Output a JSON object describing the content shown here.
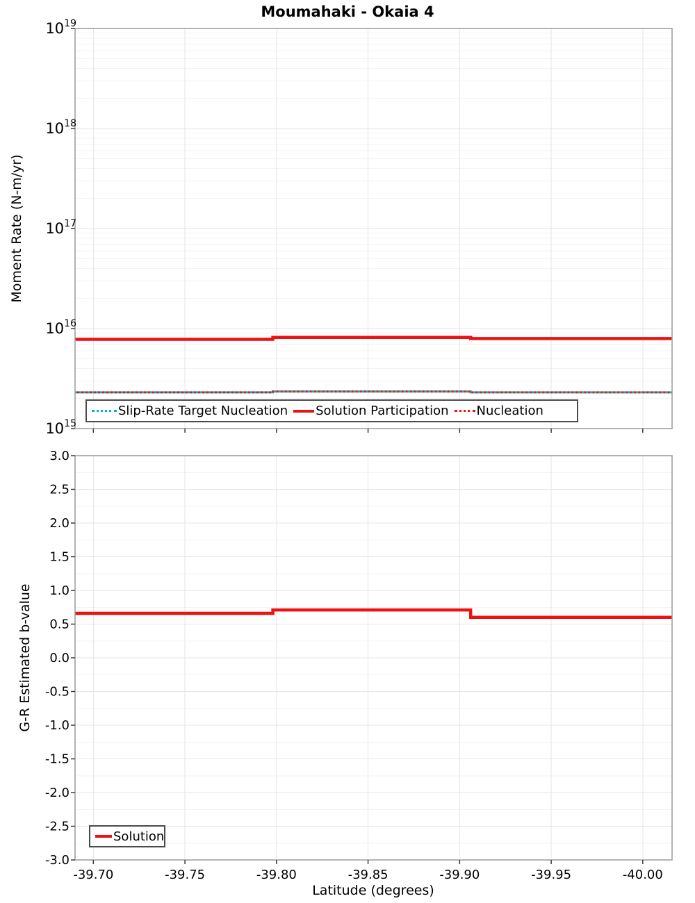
{
  "title": "Moumahaki - Okaia 4",
  "colors": {
    "red": "#ee1111",
    "teal": "#00b5bd",
    "grid_minor": "#f3f3f3",
    "grid_major": "#e6e6e6",
    "spine": "#9a9a9a",
    "tick": "#3a3a3a",
    "text": "#000000"
  },
  "chart_data": [
    {
      "type": "line",
      "panel": "moment-rate",
      "title": "Moumahaki - Okaia 4",
      "ylabel": "Moment Rate (N-m/yr)",
      "yscale": "log",
      "ylim": [
        1000000000000000.0,
        1e+19
      ],
      "xlim": [
        -39.69,
        -40.016
      ],
      "grid": true,
      "x_ticks": {
        "values": [
          -39.7,
          -39.75,
          -39.8,
          -39.85,
          -39.9,
          -39.95,
          -40.0
        ]
      },
      "y_ticks": {
        "base": "10",
        "exponents": [
          19,
          18,
          17,
          16,
          15
        ]
      },
      "legend": {
        "position": "bottom-left",
        "items": [
          {
            "label": "Slip-Rate Target Nucleation",
            "style": "dotted",
            "color": "#00b5bd"
          },
          {
            "label": "Solution Participation",
            "style": "solid",
            "color": "#ee1111"
          },
          {
            "label": "Nucleation",
            "style": "dotted",
            "color": "#ee1111"
          }
        ]
      },
      "series": [
        {
          "name": "Slip-Rate Target Nucleation",
          "style": "dotted",
          "color": "#00b5bd",
          "x": [
            -39.69,
            -39.798,
            -39.798,
            -39.906,
            -39.906,
            -40.016
          ],
          "y": [
            2300000000000000.0,
            2300000000000000.0,
            2350000000000000.0,
            2350000000000000.0,
            2300000000000000.0,
            2300000000000000.0
          ]
        },
        {
          "name": "Solution Participation",
          "style": "solid",
          "color": "#ee1111",
          "x": [
            -39.69,
            -39.798,
            -39.798,
            -39.906,
            -39.906,
            -40.016
          ],
          "y": [
            7800000000000000.0,
            7800000000000000.0,
            8150000000000000.0,
            8150000000000000.0,
            7950000000000000.0,
            7950000000000000.0
          ]
        },
        {
          "name": "Nucleation",
          "style": "dotted",
          "color": "#ee1111",
          "x": [
            -39.69,
            -39.798,
            -39.798,
            -39.906,
            -39.906,
            -40.016
          ],
          "y": [
            2300000000000000.0,
            2300000000000000.0,
            2350000000000000.0,
            2350000000000000.0,
            2300000000000000.0,
            2300000000000000.0
          ]
        }
      ]
    },
    {
      "type": "line",
      "panel": "b-value",
      "ylabel": "G-R Estimated b-value",
      "xlabel": "Latitude (degrees)",
      "yscale": "linear",
      "ylim": [
        -3.0,
        3.0
      ],
      "xlim": [
        -39.69,
        -40.016
      ],
      "grid": true,
      "x_ticks": {
        "values": [
          -39.7,
          -39.75,
          -39.8,
          -39.85,
          -39.9,
          -39.95,
          -40.0
        ],
        "labels": [
          "-39.70",
          "-39.75",
          "-39.80",
          "-39.85",
          "-39.90",
          "-39.95",
          "-40.00"
        ]
      },
      "y_ticks": {
        "values": [
          3.0,
          2.5,
          2.0,
          1.5,
          1.0,
          0.5,
          0.0,
          -0.5,
          -1.0,
          -1.5,
          -2.0,
          -2.5,
          -3.0
        ],
        "labels": [
          "3.0",
          "2.5",
          "2.0",
          "1.5",
          "1.0",
          "0.5",
          "0.0",
          "-0.5",
          "-1.0",
          "-1.5",
          "-2.0",
          "-2.5",
          "-3.0"
        ]
      },
      "legend": {
        "position": "bottom-left",
        "items": [
          {
            "label": "Solution",
            "style": "solid",
            "color": "#ee1111"
          }
        ]
      },
      "series": [
        {
          "name": "Solution",
          "style": "solid",
          "color": "#ee1111",
          "x": [
            -39.69,
            -39.798,
            -39.798,
            -39.906,
            -39.906,
            -40.016
          ],
          "y": [
            0.66,
            0.66,
            0.71,
            0.71,
            0.6,
            0.6
          ]
        }
      ]
    }
  ]
}
